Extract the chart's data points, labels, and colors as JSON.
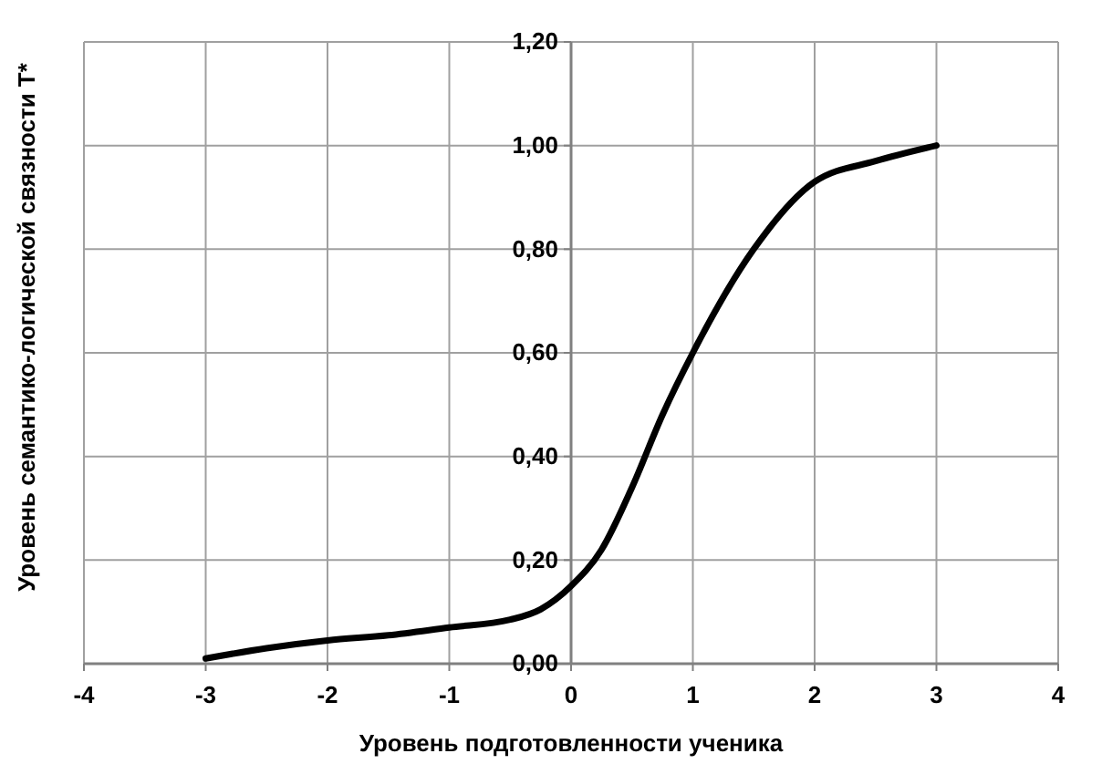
{
  "chart_data": {
    "type": "line",
    "xlabel": "Уровень подготовленности ученика",
    "ylabel": "Уровень семантико-логической связности Т*",
    "x": [
      -3,
      -2.5,
      -2,
      -1.5,
      -1,
      -0.5,
      -0.25,
      0,
      0.25,
      0.5,
      0.75,
      1,
      1.5,
      2,
      2.5,
      3
    ],
    "series": [
      {
        "color": "#000000",
        "values": [
          0.01,
          0.03,
          0.045,
          0.055,
          0.07,
          0.085,
          0.105,
          0.15,
          0.22,
          0.34,
          0.48,
          0.6,
          0.8,
          0.93,
          0.97,
          1.0
        ]
      }
    ],
    "xlim": [
      -4,
      4
    ],
    "xticks": [
      -4,
      -3,
      -2,
      -1,
      0,
      1,
      2,
      3,
      4
    ],
    "ylim": [
      0,
      1.2
    ],
    "yticks": [
      {
        "value": 0,
        "label": "0,00"
      },
      {
        "value": 0.2,
        "label": "0,20"
      },
      {
        "value": 0.4,
        "label": "0,40"
      },
      {
        "value": 0.6,
        "label": "0,60"
      },
      {
        "value": 0.8,
        "label": "0,80"
      },
      {
        "value": 1,
        "label": "1,00"
      },
      {
        "value": 1.2,
        "label": "1,20"
      }
    ],
    "grid": true,
    "marker": "none",
    "line_style": "solid"
  }
}
